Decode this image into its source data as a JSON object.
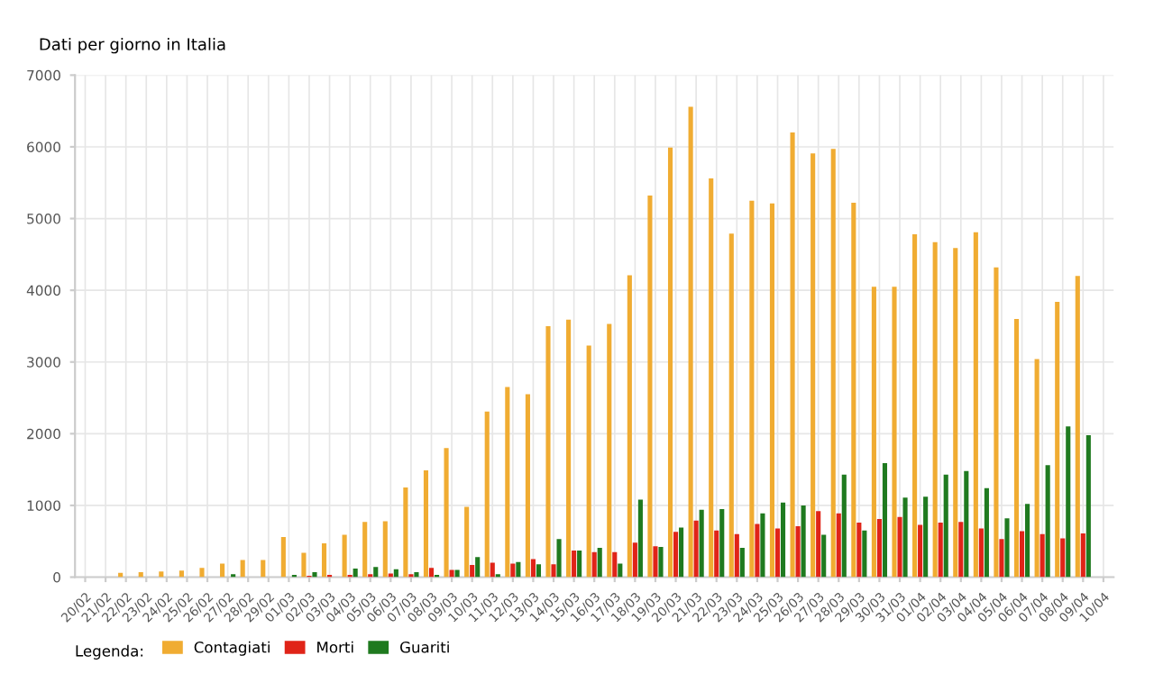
{
  "chart_data": {
    "type": "bar",
    "title": "Dati per giorno in Italia",
    "categories": [
      "20/02",
      "21/02",
      "22/02",
      "23/02",
      "24/02",
      "25/02",
      "26/02",
      "27/02",
      "28/02",
      "29/02",
      "01/03",
      "02/03",
      "03/03",
      "04/03",
      "05/03",
      "06/03",
      "07/03",
      "08/03",
      "09/03",
      "10/03",
      "11/03",
      "12/03",
      "13/03",
      "14/03",
      "15/03",
      "16/03",
      "17/03",
      "18/03",
      "19/03",
      "20/03",
      "21/03",
      "22/03",
      "23/03",
      "24/03",
      "25/03",
      "26/03",
      "27/03",
      "28/03",
      "29/03",
      "30/03",
      "31/03",
      "01/04",
      "02/04",
      "03/04",
      "04/04",
      "05/04",
      "06/04",
      "07/04",
      "08/04",
      "09/04",
      "10/04"
    ],
    "series": [
      {
        "name": "Contagiati",
        "color": "#f0ac32",
        "values": [
          0,
          0,
          60,
          70,
          80,
          90,
          130,
          190,
          240,
          240,
          560,
          340,
          470,
          590,
          770,
          780,
          1250,
          1490,
          1800,
          980,
          2310,
          2650,
          2550,
          3500,
          3590,
          3230,
          3530,
          4210,
          5320,
          5990,
          6560,
          5560,
          4790,
          5250,
          5210,
          6200,
          5910,
          5970,
          5220,
          4050,
          4050,
          4780,
          4670,
          4590,
          4810,
          4320,
          3600,
          3040,
          3840,
          4200,
          null
        ]
      },
      {
        "name": "Morti",
        "color": "#e02418",
        "values": [
          0,
          0,
          0,
          0,
          0,
          0,
          null,
          0,
          null,
          null,
          null,
          20,
          30,
          30,
          40,
          50,
          40,
          130,
          100,
          170,
          200,
          190,
          250,
          180,
          370,
          350,
          350,
          480,
          430,
          630,
          790,
          650,
          600,
          740,
          680,
          710,
          920,
          890,
          760,
          810,
          840,
          730,
          760,
          770,
          680,
          530,
          640,
          600,
          540,
          610,
          null
        ]
      },
      {
        "name": "Guariti",
        "color": "#1f7a1f",
        "values": [
          0,
          0,
          0,
          0,
          0,
          0,
          0,
          40,
          0,
          0,
          30,
          70,
          null,
          120,
          140,
          110,
          70,
          30,
          100,
          280,
          40,
          210,
          180,
          530,
          370,
          410,
          190,
          1080,
          420,
          690,
          940,
          950,
          410,
          890,
          1040,
          1000,
          590,
          1430,
          650,
          1590,
          1110,
          1120,
          1430,
          1480,
          1240,
          820,
          1020,
          1560,
          2100,
          1980,
          null
        ]
      }
    ],
    "ylim": [
      0,
      7000
    ],
    "yticks": [
      0,
      1000,
      2000,
      3000,
      4000,
      5000,
      6000,
      7000
    ],
    "grid": true,
    "legend": "bottom left",
    "legend_title": "Legenda:"
  }
}
